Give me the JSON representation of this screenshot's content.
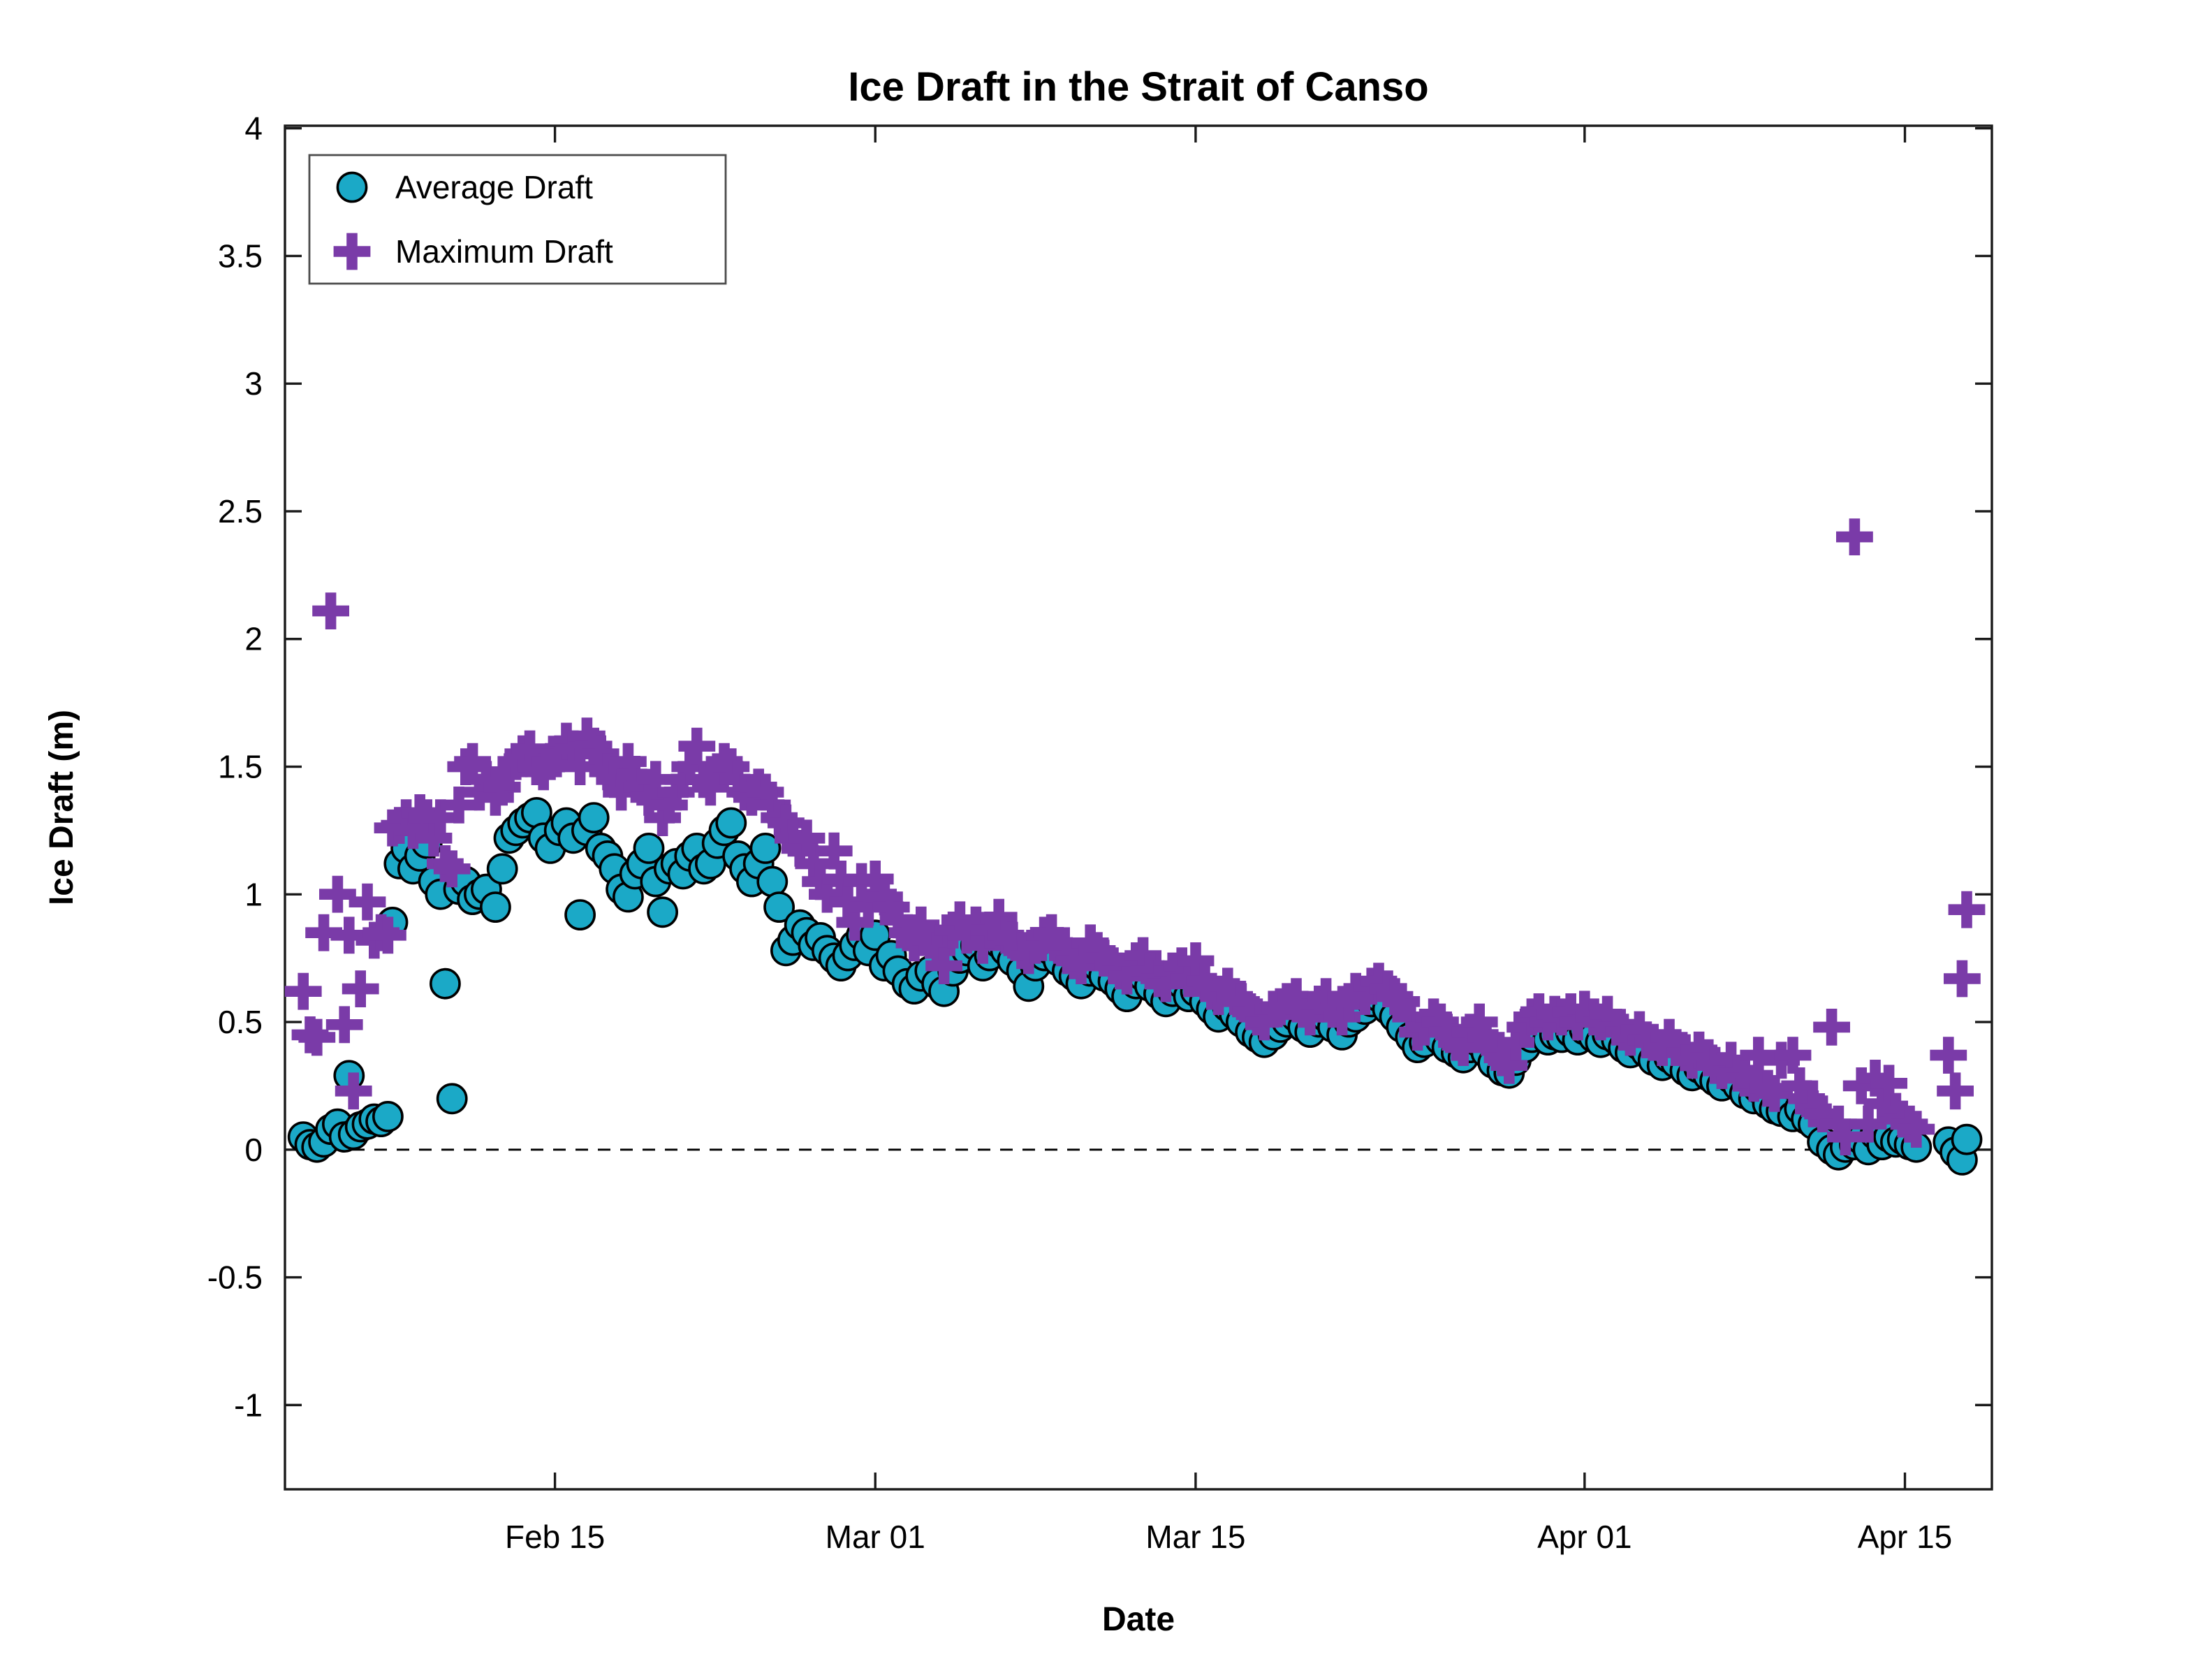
{
  "title": "Ice Draft in the Strait of Canso",
  "colors": {
    "average_fill": "#1BA9C7",
    "maximum_fill": "#7A3BA8",
    "marker_edge": "#000000",
    "axis": "#1a1a1a",
    "legend_border": "#4d4d4d",
    "text": "#000000"
  },
  "chart_data": {
    "type": "scatter",
    "title": "Ice Draft in the Strait of Canso",
    "xlabel": "Date",
    "ylabel": "Ice Draft (m)",
    "grid": false,
    "zero_line_style": "dashed",
    "legend": {
      "position": "northwest",
      "entries": [
        "Average Draft",
        "Maximum Draft"
      ],
      "markers": [
        "circle",
        "plus"
      ]
    },
    "x_axis": {
      "units": "days_since_Feb_01",
      "min": 2.2,
      "max": 76.8,
      "ticks": [
        {
          "t": 14,
          "label": "Feb 15"
        },
        {
          "t": 28,
          "label": "Mar 01"
        },
        {
          "t": 42,
          "label": "Mar 15"
        },
        {
          "t": 59,
          "label": "Apr 01"
        },
        {
          "t": 73,
          "label": "Apr 15"
        }
      ]
    },
    "y_axis": {
      "min": -1.33,
      "max": 4.01,
      "ticks": [
        -1,
        -0.5,
        0,
        0.5,
        1,
        1.5,
        2,
        2.5,
        3,
        3.5,
        4
      ]
    },
    "series_names": [
      "Average Draft",
      "Maximum Draft"
    ],
    "points_t_avg_max": [
      [
        3.0,
        0.05,
        0.62
      ],
      [
        3.3,
        0.02,
        0.45
      ],
      [
        3.6,
        0.01,
        0.44
      ],
      [
        3.9,
        0.03,
        0.85
      ],
      [
        4.2,
        0.08,
        2.11
      ],
      [
        4.5,
        0.1,
        1.0
      ],
      [
        4.8,
        0.05,
        0.49
      ],
      [
        5.0,
        0.29,
        0.84
      ],
      [
        5.2,
        0.06,
        0.23
      ],
      [
        5.5,
        0.09,
        0.63
      ],
      [
        5.8,
        0.1,
        0.97
      ],
      [
        6.1,
        0.12,
        0.82
      ],
      [
        6.4,
        0.11,
        0.85
      ],
      [
        6.7,
        0.13,
        0.84
      ],
      [
        6.9,
        0.89,
        1.26
      ],
      [
        7.2,
        1.12,
        1.27
      ],
      [
        7.5,
        1.18,
        1.3
      ],
      [
        7.8,
        1.1,
        1.25
      ],
      [
        8.1,
        1.15,
        1.32
      ],
      [
        8.4,
        1.2,
        1.3
      ],
      [
        8.7,
        1.05,
        1.22
      ],
      [
        9.0,
        1.0,
        1.3
      ],
      [
        9.2,
        0.65,
        1.12
      ],
      [
        9.5,
        0.2,
        1.1
      ],
      [
        9.8,
        1.02,
        1.35
      ],
      [
        10.1,
        1.05,
        1.5
      ],
      [
        10.4,
        0.98,
        1.52
      ],
      [
        10.7,
        1.0,
        1.4
      ],
      [
        11.0,
        1.02,
        1.45
      ],
      [
        11.4,
        0.95,
        1.38
      ],
      [
        11.7,
        1.1,
        1.42
      ],
      [
        12.0,
        1.22,
        1.48
      ],
      [
        12.3,
        1.25,
        1.52
      ],
      [
        12.6,
        1.28,
        1.55
      ],
      [
        12.9,
        1.3,
        1.57
      ],
      [
        13.2,
        1.32,
        1.5
      ],
      [
        13.5,
        1.22,
        1.48
      ],
      [
        13.8,
        1.18,
        1.52
      ],
      [
        14.2,
        1.25,
        1.55
      ],
      [
        14.5,
        1.28,
        1.6
      ],
      [
        14.8,
        1.22,
        1.57
      ],
      [
        15.1,
        0.92,
        1.5
      ],
      [
        15.4,
        1.25,
        1.62
      ],
      [
        15.7,
        1.3,
        1.58
      ],
      [
        16.0,
        1.18,
        1.55
      ],
      [
        16.3,
        1.15,
        1.48
      ],
      [
        16.6,
        1.1,
        1.45
      ],
      [
        16.9,
        1.02,
        1.4
      ],
      [
        17.2,
        0.99,
        1.52
      ],
      [
        17.5,
        1.08,
        1.47
      ],
      [
        17.8,
        1.12,
        1.42
      ],
      [
        18.1,
        1.18,
        1.38
      ],
      [
        18.4,
        1.05,
        1.45
      ],
      [
        18.7,
        0.93,
        1.3
      ],
      [
        19.0,
        1.1,
        1.35
      ],
      [
        19.3,
        1.12,
        1.4
      ],
      [
        19.6,
        1.08,
        1.45
      ],
      [
        19.9,
        1.15,
        1.5
      ],
      [
        20.2,
        1.18,
        1.58
      ],
      [
        20.5,
        1.1,
        1.45
      ],
      [
        20.8,
        1.12,
        1.42
      ],
      [
        21.1,
        1.2,
        1.48
      ],
      [
        21.4,
        1.25,
        1.52
      ],
      [
        21.7,
        1.28,
        1.5
      ],
      [
        22.0,
        1.15,
        1.45
      ],
      [
        22.3,
        1.1,
        1.4
      ],
      [
        22.6,
        1.05,
        1.38
      ],
      [
        22.9,
        1.12,
        1.42
      ],
      [
        23.2,
        1.18,
        1.4
      ],
      [
        23.5,
        1.05,
        1.35
      ],
      [
        23.8,
        0.95,
        1.3
      ],
      [
        24.1,
        0.78,
        1.28
      ],
      [
        24.4,
        0.82,
        1.22
      ],
      [
        24.7,
        0.88,
        1.18
      ],
      [
        25.0,
        0.85,
        1.22
      ],
      [
        25.3,
        0.8,
        1.12
      ],
      [
        25.6,
        0.83,
        1.05
      ],
      [
        25.9,
        0.78,
        1.0
      ],
      [
        26.2,
        0.75,
        1.17
      ],
      [
        26.5,
        0.72,
        1.06
      ],
      [
        26.8,
        0.76,
        0.97
      ],
      [
        27.1,
        0.8,
        0.89
      ],
      [
        27.4,
        0.84,
        1.05
      ],
      [
        27.7,
        0.78,
        0.95
      ],
      [
        28.0,
        0.84,
        1.06
      ],
      [
        28.4,
        0.72,
        0.99
      ],
      [
        28.7,
        0.76,
        0.95
      ],
      [
        29.0,
        0.7,
        0.9
      ],
      [
        29.4,
        0.65,
        0.85
      ],
      [
        29.7,
        0.63,
        0.81
      ],
      [
        30.0,
        0.68,
        0.88
      ],
      [
        30.4,
        0.7,
        0.82
      ],
      [
        30.7,
        0.65,
        0.78
      ],
      [
        31.0,
        0.62,
        0.72
      ],
      [
        31.4,
        0.7,
        0.86
      ],
      [
        31.7,
        0.75,
        0.9
      ],
      [
        32.0,
        0.78,
        0.84
      ],
      [
        32.4,
        0.8,
        0.88
      ],
      [
        32.7,
        0.72,
        0.8
      ],
      [
        33.0,
        0.76,
        0.86
      ],
      [
        33.4,
        0.81,
        0.91
      ],
      [
        33.7,
        0.78,
        0.84
      ],
      [
        34.0,
        0.74,
        0.82
      ],
      [
        34.4,
        0.7,
        0.78
      ],
      [
        34.7,
        0.64,
        0.76
      ],
      [
        35.0,
        0.72,
        0.8
      ],
      [
        35.4,
        0.76,
        0.84
      ],
      [
        35.7,
        0.78,
        0.85
      ],
      [
        36.0,
        0.74,
        0.8
      ],
      [
        36.4,
        0.7,
        0.76
      ],
      [
        36.7,
        0.68,
        0.74
      ],
      [
        37.0,
        0.65,
        0.72
      ],
      [
        37.4,
        0.7,
        0.81
      ],
      [
        37.7,
        0.72,
        0.78
      ],
      [
        38.0,
        0.68,
        0.75
      ],
      [
        38.4,
        0.66,
        0.72
      ],
      [
        38.7,
        0.63,
        0.7
      ],
      [
        39.0,
        0.6,
        0.68
      ],
      [
        39.4,
        0.65,
        0.74
      ],
      [
        39.7,
        0.68,
        0.76
      ],
      [
        40.0,
        0.64,
        0.7
      ],
      [
        40.4,
        0.61,
        0.67
      ],
      [
        40.7,
        0.58,
        0.65
      ],
      [
        41.0,
        0.62,
        0.7
      ],
      [
        41.4,
        0.65,
        0.72
      ],
      [
        41.7,
        0.6,
        0.67
      ],
      [
        42.0,
        0.62,
        0.74
      ],
      [
        42.4,
        0.58,
        0.66
      ],
      [
        42.7,
        0.55,
        0.62
      ],
      [
        43.0,
        0.52,
        0.6
      ],
      [
        43.4,
        0.56,
        0.64
      ],
      [
        43.7,
        0.53,
        0.6
      ],
      [
        44.0,
        0.5,
        0.58
      ],
      [
        44.4,
        0.46,
        0.54
      ],
      [
        44.7,
        0.44,
        0.52
      ],
      [
        45.0,
        0.42,
        0.5
      ],
      [
        45.4,
        0.45,
        0.55
      ],
      [
        45.7,
        0.48,
        0.56
      ],
      [
        46.0,
        0.5,
        0.58
      ],
      [
        46.4,
        0.52,
        0.6
      ],
      [
        46.7,
        0.48,
        0.55
      ],
      [
        47.0,
        0.46,
        0.52
      ],
      [
        47.4,
        0.5,
        0.57
      ],
      [
        47.7,
        0.52,
        0.6
      ],
      [
        48.0,
        0.48,
        0.55
      ],
      [
        48.4,
        0.45,
        0.52
      ],
      [
        48.7,
        0.5,
        0.58
      ],
      [
        49.0,
        0.52,
        0.62
      ],
      [
        49.4,
        0.55,
        0.6
      ],
      [
        49.7,
        0.58,
        0.64
      ],
      [
        50.0,
        0.6,
        0.66
      ],
      [
        50.4,
        0.55,
        0.63
      ],
      [
        50.7,
        0.52,
        0.6
      ],
      [
        51.0,
        0.48,
        0.58
      ],
      [
        51.4,
        0.44,
        0.52
      ],
      [
        51.7,
        0.4,
        0.46
      ],
      [
        52.0,
        0.42,
        0.48
      ],
      [
        52.4,
        0.46,
        0.52
      ],
      [
        52.7,
        0.43,
        0.5
      ],
      [
        53.0,
        0.4,
        0.46
      ],
      [
        53.4,
        0.38,
        0.42
      ],
      [
        53.7,
        0.36,
        0.4
      ],
      [
        54.0,
        0.4,
        0.46
      ],
      [
        54.4,
        0.42,
        0.5
      ],
      [
        54.7,
        0.38,
        0.44
      ],
      [
        55.0,
        0.34,
        0.4
      ],
      [
        55.4,
        0.31,
        0.36
      ],
      [
        55.7,
        0.3,
        0.33
      ],
      [
        56.0,
        0.35,
        0.42
      ],
      [
        56.4,
        0.4,
        0.48
      ],
      [
        56.7,
        0.44,
        0.52
      ],
      [
        57.0,
        0.46,
        0.54
      ],
      [
        57.4,
        0.43,
        0.5
      ],
      [
        57.7,
        0.45,
        0.53
      ],
      [
        58.0,
        0.44,
        0.52
      ],
      [
        58.4,
        0.46,
        0.54
      ],
      [
        58.7,
        0.43,
        0.5
      ],
      [
        59.0,
        0.47,
        0.55
      ],
      [
        59.4,
        0.44,
        0.52
      ],
      [
        59.7,
        0.42,
        0.5
      ],
      [
        60.0,
        0.45,
        0.53
      ],
      [
        60.4,
        0.43,
        0.48
      ],
      [
        60.7,
        0.4,
        0.46
      ],
      [
        61.0,
        0.38,
        0.44
      ],
      [
        61.4,
        0.41,
        0.47
      ],
      [
        61.7,
        0.38,
        0.43
      ],
      [
        62.0,
        0.35,
        0.42
      ],
      [
        62.4,
        0.33,
        0.4
      ],
      [
        62.7,
        0.36,
        0.44
      ],
      [
        63.0,
        0.34,
        0.4
      ],
      [
        63.4,
        0.31,
        0.38
      ],
      [
        63.7,
        0.29,
        0.35
      ],
      [
        64.0,
        0.32,
        0.39
      ],
      [
        64.4,
        0.29,
        0.36
      ],
      [
        64.7,
        0.27,
        0.33
      ],
      [
        65.0,
        0.25,
        0.31
      ],
      [
        65.4,
        0.28,
        0.35
      ],
      [
        65.7,
        0.25,
        0.3
      ],
      [
        66.0,
        0.22,
        0.28
      ],
      [
        66.4,
        0.2,
        0.26
      ],
      [
        66.6,
        0.24,
        0.37
      ],
      [
        67.0,
        0.18,
        0.24
      ],
      [
        67.3,
        0.16,
        0.22
      ],
      [
        67.6,
        0.15,
        0.35
      ],
      [
        68.1,
        0.13,
        0.37
      ],
      [
        68.4,
        0.16,
        0.25
      ],
      [
        68.7,
        0.12,
        0.2
      ],
      [
        69.0,
        0.1,
        0.16
      ],
      [
        69.4,
        0.03,
        0.14
      ],
      [
        69.8,
        0.0,
        0.48
      ],
      [
        70.1,
        -0.02,
        0.1
      ],
      [
        70.4,
        0.01,
        0.05
      ],
      [
        70.8,
        0.02,
        2.4
      ],
      [
        71.1,
        0.04,
        0.25
      ],
      [
        71.4,
        0.0,
        0.1
      ],
      [
        71.7,
        0.06,
        0.28
      ],
      [
        72.0,
        0.02,
        0.18
      ],
      [
        72.3,
        0.05,
        0.26
      ],
      [
        72.6,
        0.03,
        0.15
      ],
      [
        72.9,
        0.04,
        0.12
      ],
      [
        73.2,
        0.02,
        0.1
      ],
      [
        73.5,
        0.01,
        0.08
      ],
      [
        74.9,
        0.03,
        0.37
      ],
      [
        75.2,
        -0.01,
        0.23
      ],
      [
        75.5,
        -0.04,
        0.67
      ],
      [
        75.7,
        0.04,
        0.94
      ]
    ]
  }
}
